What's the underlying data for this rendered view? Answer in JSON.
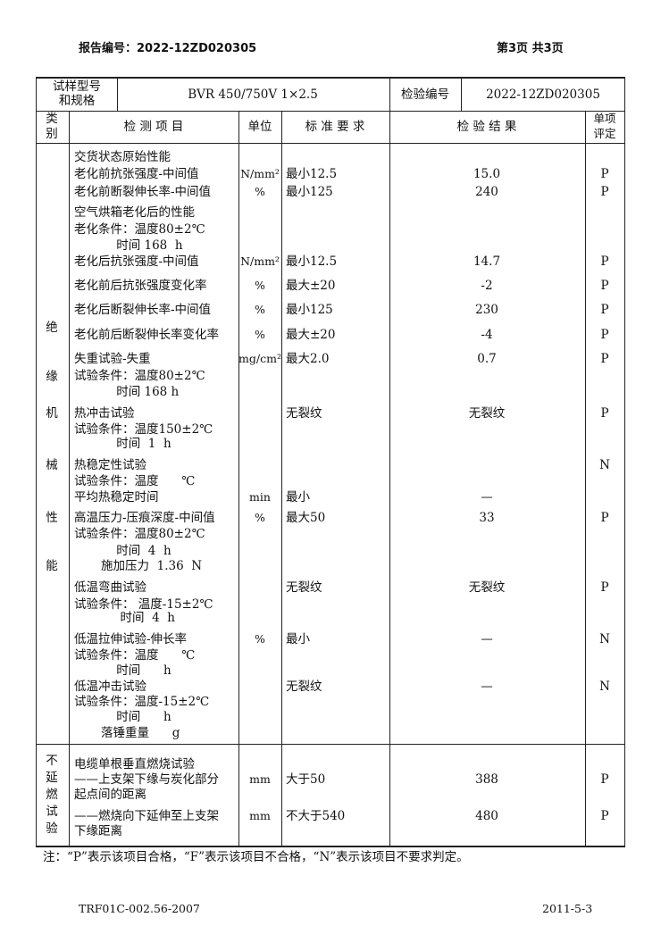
{
  "header": {
    "report_no": "报告编号：2022-12ZD020305",
    "page": "第3页 共3页"
  },
  "info": {
    "sample_label": [
      "试样型号",
      "和规格"
    ],
    "sample_value": "BVR 450/750V 1×2.5",
    "inspection_no_label": "检验编号",
    "inspection_no": "2022-12ZD020305"
  },
  "columns": {
    "category": [
      "类",
      "别"
    ],
    "item": "检 测 项 目",
    "unit": "单位",
    "requirement": "标 准 要 求",
    "result": "检 验 结 果",
    "verdict": [
      "单项",
      "评定"
    ]
  },
  "sections": [
    {
      "category": [
        "绝",
        "缘",
        "机",
        "械",
        "性",
        "能"
      ]
    },
    {
      "category": [
        "不",
        "延",
        "燃",
        "试",
        "验"
      ]
    }
  ],
  "rows": [
    {
      "lines": [
        "交货状态原始性能"
      ],
      "unit": "",
      "requirement": "",
      "result": "",
      "verdict": ""
    },
    {
      "lines": [
        "老化前抗张强度-中间值"
      ],
      "unit": "N/mm²",
      "requirement": "最小12.5",
      "result": "15.0",
      "verdict": "P"
    },
    {
      "lines": [
        "老化前断裂伸长率-中间值"
      ],
      "unit": "%",
      "requirement": "最小125",
      "result": "240",
      "verdict": "P"
    },
    {
      "lines": [
        "空气烘箱老化后的性能",
        "老化条件：温度80±2℃",
        "           时间 168  h"
      ],
      "unit": "",
      "requirement": "",
      "result": "",
      "verdict": ""
    },
    {
      "lines": [
        "老化后抗张强度-中间值"
      ],
      "unit": "N/mm²",
      "requirement": "最小12.5",
      "result": "14.7",
      "verdict": "P"
    },
    {
      "lines": [
        "老化前后抗张强度变化率"
      ],
      "unit": "%",
      "requirement": "最大±20",
      "result": "-2",
      "verdict": "P"
    },
    {
      "lines": [
        "老化后断裂伸长率-中间值"
      ],
      "unit": "%",
      "requirement": "最小125",
      "result": "230",
      "verdict": "P"
    },
    {
      "lines": [
        "老化前后断裂伸长率变化率"
      ],
      "unit": "%",
      "requirement": "最大±20",
      "result": "-4",
      "verdict": "P"
    },
    {
      "lines": [
        "失重试验-失重",
        "试验条件：温度80±2℃",
        "           时间 168 h"
      ],
      "unit": "mg/cm²",
      "requirement": "最大2.0",
      "result": "0.7",
      "verdict": "P"
    },
    {
      "lines": [
        "热冲击试验",
        "试验条件：温度150±2℃",
        "           时间  1  h"
      ],
      "unit": "",
      "requirement": "无裂纹",
      "result": "无裂纹",
      "verdict": "P"
    },
    {
      "lines": [
        "热稳定性试验",
        "试验条件：温度      ℃",
        "平均热稳定时间"
      ],
      "unit": "min",
      "requirement": "最小",
      "result": "—",
      "verdict": "N"
    },
    {
      "lines": [
        "高温压力-压痕深度-中间值",
        "试验条件：温度80±2℃",
        "           时间  4  h",
        "       施加压力  1.36  N"
      ],
      "unit": "%",
      "requirement": "最大50",
      "result": "33",
      "verdict": "P"
    },
    {
      "lines": [
        "低温弯曲试验",
        "试验条件： 温度-15±2℃",
        "            时间  4  h"
      ],
      "unit": "",
      "requirement": "无裂纹",
      "result": "无裂纹",
      "verdict": "P"
    },
    {
      "lines": [
        "低温拉伸试验-伸长率",
        "试验条件：温度      ℃",
        "           时间      h"
      ],
      "unit": "%",
      "requirement": "最小",
      "result": "—",
      "verdict": "N"
    },
    {
      "lines": [
        "低温冲击试验",
        "试验条件：温度-15±2℃",
        "           时间      h",
        "       落锤重量      g"
      ],
      "unit": "",
      "requirement": "无裂纹",
      "result": "—",
      "verdict": "N"
    },
    {
      "lines": [
        "电缆单根垂直燃烧试验",
        "——上支架下缘与炭化部分",
        "起点间的距离"
      ],
      "unit": "mm",
      "requirement": "大于50",
      "result": "388",
      "verdict": "P"
    },
    {
      "lines": [
        "——燃烧向下延伸至上支架",
        "下缘距离"
      ],
      "unit": "mm",
      "requirement": "不大于540",
      "result": "480",
      "verdict": "P"
    }
  ],
  "note": "注：“P”表示该项目合格，“F”表示该项目不合格，“N”表示该项目不要求判定。",
  "footer": {
    "form_no": "TRF01C-002.56-2007",
    "date": "2011-5-3"
  }
}
